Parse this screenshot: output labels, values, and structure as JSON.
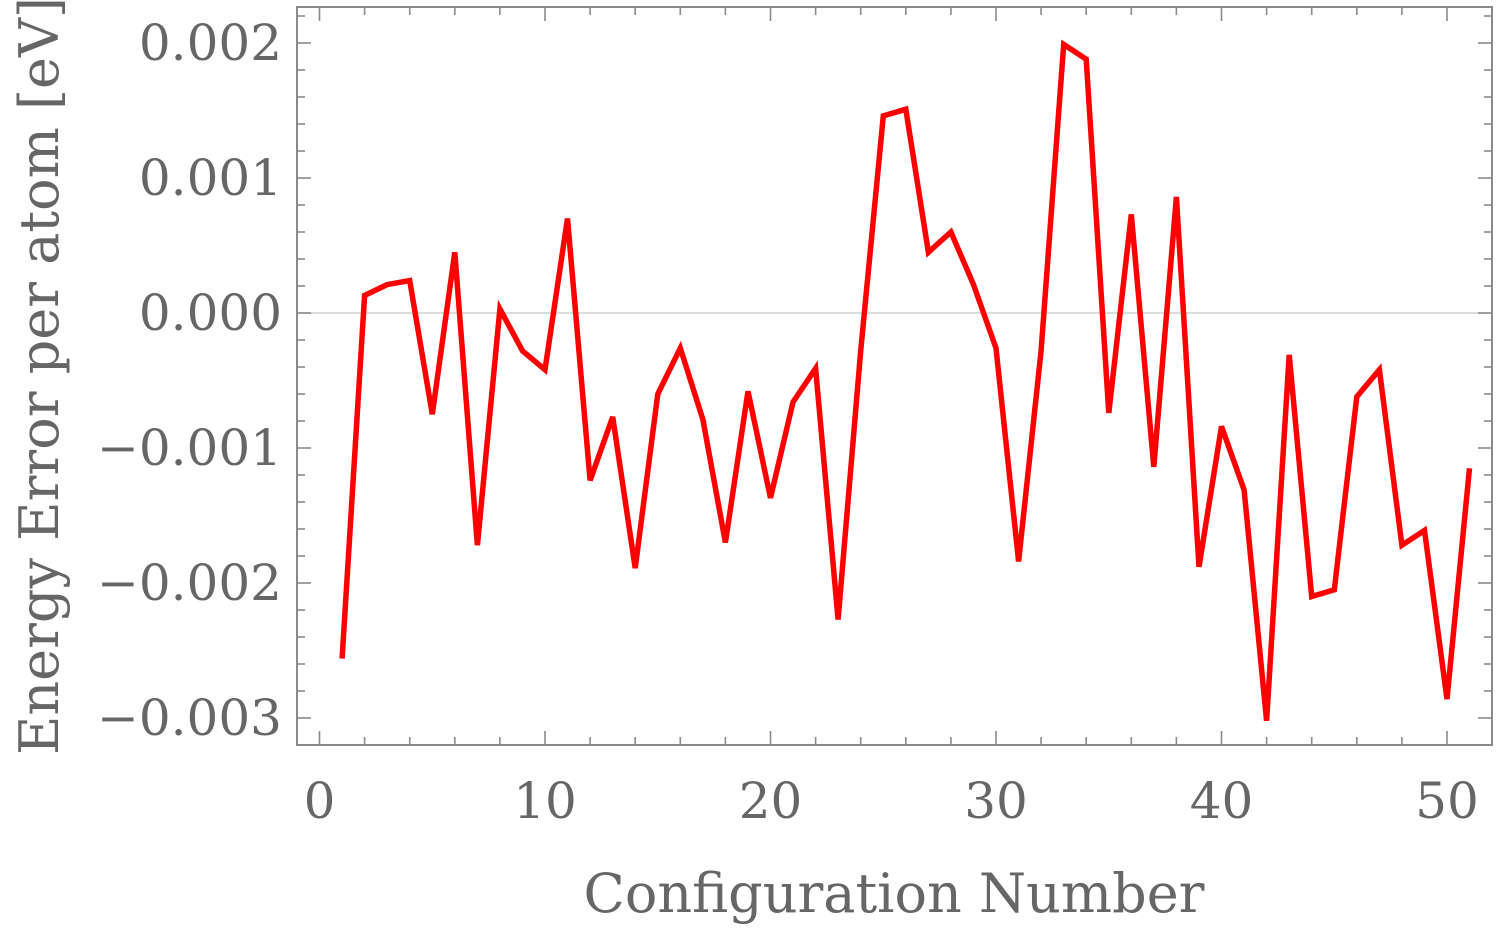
{
  "chart_data": {
    "type": "line",
    "title": "",
    "xlabel": "Configuration Number",
    "ylabel": "Energy Error per atom [eV]",
    "xlim": [
      0,
      52
    ],
    "ylim": [
      -0.0032,
      0.00228
    ],
    "x_ticks": [
      0,
      10,
      20,
      30,
      40,
      50
    ],
    "x_tick_labels": [
      "0",
      "10",
      "20",
      "30",
      "40",
      "50"
    ],
    "y_ticks": [
      -0.003,
      -0.002,
      -0.001,
      0.0,
      0.001,
      0.002
    ],
    "y_tick_labels": [
      "−0.003",
      "−0.002",
      "−0.001",
      "0.000",
      "0.001",
      "0.002"
    ],
    "grid": false,
    "zero_line": true,
    "series": [
      {
        "color": "#ff0000",
        "x": [
          1,
          2,
          3,
          4,
          5,
          6,
          7,
          8,
          9,
          10,
          11,
          12,
          13,
          14,
          15,
          16,
          17,
          18,
          19,
          20,
          21,
          22,
          23,
          24,
          25,
          26,
          27,
          28,
          29,
          30,
          31,
          32,
          33,
          34,
          35,
          36,
          37,
          38,
          39,
          40,
          41,
          42,
          43,
          44,
          45,
          46,
          47,
          48,
          49,
          50,
          51
        ],
        "y": [
          -0.00256,
          0.00013,
          0.00021,
          0.00024,
          -0.00075,
          0.00045,
          -0.00172,
          3e-05,
          -0.00028,
          -0.00042,
          0.0007,
          -0.00124,
          -0.00077,
          -0.00189,
          -0.0006,
          -0.00026,
          -0.00079,
          -0.0017,
          -0.00058,
          -0.00137,
          -0.00066,
          -0.00041,
          -0.00227,
          -0.00028,
          0.00146,
          0.00151,
          0.00045,
          0.0006,
          0.00021,
          -0.00026,
          -0.00184,
          -0.00028,
          0.00199,
          0.00188,
          -0.00074,
          0.00073,
          -0.00114,
          0.00086,
          -0.00188,
          -0.00084,
          -0.00131,
          -0.00302,
          -0.00031,
          -0.0021,
          -0.00205,
          -0.00062,
          -0.00042,
          -0.00172,
          -0.00161,
          -0.00286,
          -0.00115
        ]
      }
    ]
  }
}
